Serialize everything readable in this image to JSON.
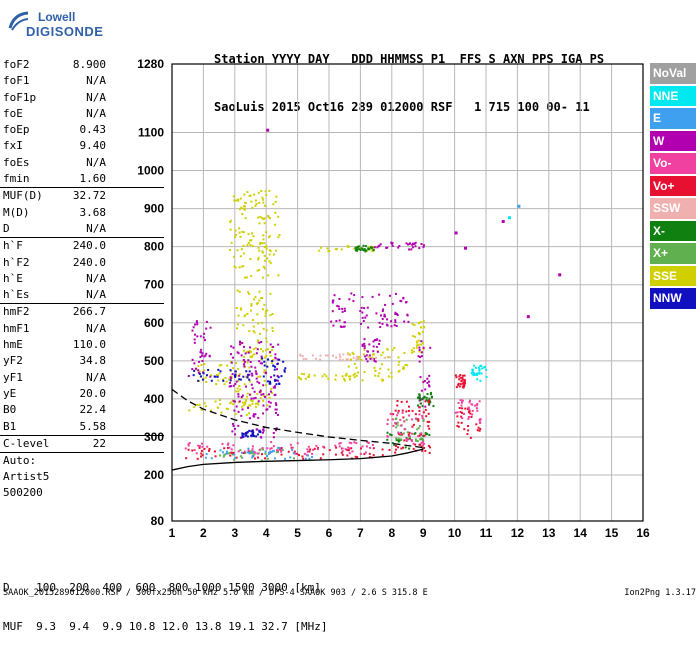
{
  "logo": {
    "line1": "Lowell",
    "line2": "DIGISONDE"
  },
  "header": {
    "labels": "Station YYYY DAY   DDD HHMMSS P1  FFS S AXN PPS IGA PS",
    "values": "SaoLuis 2015 Oct16 289 012000 RSF   1 715 100 00- 11"
  },
  "params": [
    {
      "name": "foF2",
      "value": "8.900"
    },
    {
      "name": "foF1",
      "value": "N/A"
    },
    {
      "name": "foF1p",
      "value": "N/A"
    },
    {
      "name": "foE",
      "value": "N/A"
    },
    {
      "name": "foEp",
      "value": "0.43"
    },
    {
      "name": "fxI",
      "value": "9.40"
    },
    {
      "name": "foEs",
      "value": "N/A"
    },
    {
      "name": "fmin",
      "value": "1.60"
    },
    {
      "sep": true
    },
    {
      "name": "MUF(D)",
      "value": "32.72"
    },
    {
      "name": "M(D)",
      "value": "3.68"
    },
    {
      "name": "D",
      "value": "N/A"
    },
    {
      "sep": true
    },
    {
      "name": "h`F",
      "value": "240.0"
    },
    {
      "name": "h`F2",
      "value": "240.0"
    },
    {
      "name": "h`E",
      "value": "N/A"
    },
    {
      "name": "h`Es",
      "value": "N/A"
    },
    {
      "sep": true
    },
    {
      "name": "hmF2",
      "value": "266.7"
    },
    {
      "name": "hmF1",
      "value": "N/A"
    },
    {
      "name": "hmE",
      "value": "110.0"
    },
    {
      "name": "yF2",
      "value": "34.8"
    },
    {
      "name": "yF1",
      "value": "N/A"
    },
    {
      "name": "yE",
      "value": "20.0"
    },
    {
      "name": "B0",
      "value": "22.4"
    },
    {
      "name": "B1",
      "value": "5.58"
    },
    {
      "sep": true
    },
    {
      "name": "C-level",
      "value": "22"
    },
    {
      "sep": true
    },
    {
      "text": "Auto:"
    },
    {
      "text": "Artist5"
    },
    {
      "text": "500200"
    }
  ],
  "legend": [
    {
      "label": "NoVal",
      "color": "#a0a0a0"
    },
    {
      "label": "NNE",
      "color": "#00e8f0"
    },
    {
      "label": "E",
      "color": "#40a0f0"
    },
    {
      "label": "W",
      "color": "#b000b0"
    },
    {
      "label": "Vo-",
      "color": "#f040a0"
    },
    {
      "label": "Vo+",
      "color": "#e81030"
    },
    {
      "label": "SSW",
      "color": "#f0b0b0"
    },
    {
      "label": "X-",
      "color": "#108010"
    },
    {
      "label": "X+",
      "color": "#60b050"
    },
    {
      "label": "SSE",
      "color": "#d0d000"
    },
    {
      "label": "NNW",
      "color": "#1010c0"
    }
  ],
  "chart_data": {
    "type": "scatter",
    "x_ticks": [
      1,
      2,
      3,
      4,
      5,
      6,
      7,
      8,
      9,
      10,
      11,
      12,
      13,
      14,
      15,
      16
    ],
    "y_ticks": [
      80,
      200,
      300,
      400,
      500,
      600,
      700,
      800,
      900,
      1000,
      1100,
      1280
    ],
    "xlim": [
      1,
      16
    ],
    "ylim": [
      80,
      1280
    ],
    "y_scale": "piecewise: 80-200 compressed, 200-1280 linear",
    "grid": true,
    "traces": [
      {
        "name": "SSE",
        "color": "#d0d000",
        "clusters": [
          [
            2.8,
            4.4,
            720,
            950
          ],
          [
            3.0,
            4.2,
            380,
            690
          ],
          [
            1.6,
            3.0,
            440,
            500
          ],
          [
            1.5,
            3.5,
            360,
            400
          ],
          [
            5.5,
            7.5,
            790,
            805
          ],
          [
            5.0,
            8.0,
            450,
            470
          ],
          [
            6.5,
            8.5,
            460,
            540
          ],
          [
            8.6,
            9.0,
            520,
            610
          ]
        ]
      },
      {
        "name": "W",
        "color": "#b000b0",
        "clusters": [
          [
            2.8,
            4.4,
            300,
            560
          ],
          [
            6.0,
            8.5,
            590,
            680
          ],
          [
            7.4,
            9.0,
            795,
            815
          ],
          [
            1.5,
            2.2,
            460,
            620
          ],
          [
            8.8,
            9.2,
            380,
            560
          ],
          [
            7.0,
            7.6,
            500,
            560
          ]
        ]
      },
      {
        "name": "NNW",
        "color": "#1010c0",
        "clusters": [
          [
            1.6,
            3.5,
            450,
            480
          ],
          [
            3.8,
            4.6,
            440,
            510
          ],
          [
            3.2,
            3.8,
            300,
            320
          ]
        ]
      },
      {
        "name": "X-",
        "color": "#108010",
        "clusters": [
          [
            7.8,
            9.2,
            270,
            320
          ],
          [
            6.8,
            7.4,
            790,
            805
          ],
          [
            8.8,
            9.3,
            380,
            420
          ]
        ]
      },
      {
        "name": "X+",
        "color": "#60b050",
        "clusters": [
          [
            8.0,
            9.0,
            290,
            360
          ],
          [
            2.5,
            5.0,
            240,
            270
          ]
        ]
      },
      {
        "name": "Vo+",
        "color": "#e81030",
        "clusters": [
          [
            1.4,
            8.0,
            245,
            275
          ],
          [
            8.0,
            9.2,
            260,
            400
          ],
          [
            10.0,
            10.8,
            300,
            380
          ],
          [
            10.0,
            10.3,
            430,
            470
          ]
        ]
      },
      {
        "name": "Vo-",
        "color": "#f040a0",
        "clusters": [
          [
            1.3,
            7.5,
            255,
            290
          ],
          [
            7.8,
            9.0,
            280,
            370
          ],
          [
            10.0,
            10.8,
            340,
            400
          ]
        ]
      },
      {
        "name": "E",
        "color": "#40a0f0",
        "clusters": [
          [
            2.0,
            5.5,
            245,
            275
          ]
        ]
      },
      {
        "name": "NNE",
        "color": "#00e8f0",
        "clusters": [
          [
            10.5,
            11.0,
            450,
            490
          ]
        ]
      },
      {
        "name": "SSW",
        "color": "#f0b0b0",
        "clusters": [
          [
            4.5,
            8.0,
            505,
            520
          ]
        ]
      }
    ],
    "isolated_points": [
      {
        "x": 11.5,
        "y": 870,
        "color": "#b000b0"
      },
      {
        "x": 11.7,
        "y": 880,
        "color": "#00e8f0"
      },
      {
        "x": 12.0,
        "y": 910,
        "color": "#40a0f0"
      },
      {
        "x": 12.3,
        "y": 620,
        "color": "#b000b0"
      },
      {
        "x": 13.3,
        "y": 730,
        "color": "#b000b0"
      },
      {
        "x": 10.0,
        "y": 840,
        "color": "#b000b0"
      },
      {
        "x": 4.0,
        "y": 1110,
        "color": "#b000b0"
      },
      {
        "x": 10.3,
        "y": 800,
        "color": "#b000b0"
      }
    ],
    "profile_solid": [
      [
        1,
        213
      ],
      [
        1.5,
        222
      ],
      [
        2,
        228
      ],
      [
        3,
        233
      ],
      [
        4,
        236
      ],
      [
        5,
        238
      ],
      [
        6,
        240
      ],
      [
        7,
        243
      ],
      [
        8,
        250
      ],
      [
        8.5,
        258
      ],
      [
        9,
        268
      ]
    ],
    "profile_dashed": [
      [
        1,
        425
      ],
      [
        1.5,
        395
      ],
      [
        2,
        373
      ],
      [
        3,
        345
      ],
      [
        4,
        325
      ],
      [
        5,
        312
      ],
      [
        6,
        300
      ],
      [
        7,
        291
      ],
      [
        8,
        283
      ],
      [
        9,
        272
      ]
    ]
  },
  "bottom": {
    "d_line": "D    100  200  400  600  800 1000 1500 3000 [km]",
    "muf_line": "MUF  9.3  9.4  9.9 10.8 12.0 13.8 19.1 32.7 [MHz]"
  },
  "footer": {
    "left": "SAAOK_2015289012000.RSF / 300fx256h 50 kHz 5.0 km / DPS-4 SAAOK 903 / 2.6 S 315.8 E",
    "right": "Ion2Png 1.3.17"
  }
}
